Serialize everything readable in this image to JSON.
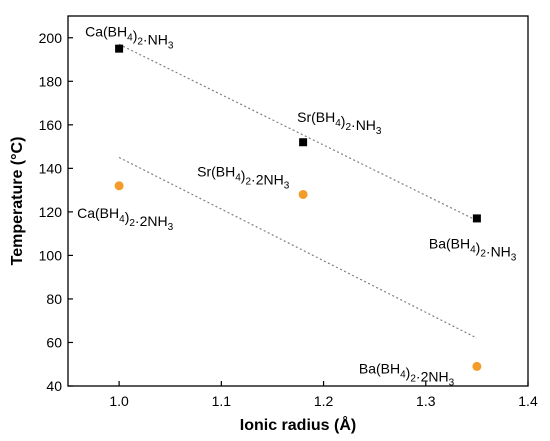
{
  "chart_data": {
    "type": "scatter",
    "xlabel": "Ionic radius (Å)",
    "ylabel": "Temperature (°C)",
    "xlim": [
      0.95,
      1.4
    ],
    "ylim": [
      40,
      210
    ],
    "xticks": [
      1.0,
      1.1,
      1.2,
      1.3,
      1.4
    ],
    "xtick_labels": [
      "1.0",
      "1.1",
      "1.2",
      "1.3",
      "1.4"
    ],
    "yticks": [
      40,
      60,
      80,
      100,
      120,
      140,
      160,
      180,
      200
    ],
    "ytick_labels": [
      "40",
      "60",
      "80",
      "100",
      "120",
      "140",
      "160",
      "180",
      "200"
    ],
    "grid": false,
    "series": [
      {
        "marker": "square",
        "color": "#000000",
        "points": [
          {
            "x": 1.0,
            "y": 195,
            "label": "Ca(BH4)2·NH3"
          },
          {
            "x": 1.18,
            "y": 152,
            "label": "Sr(BH4)2·NH3"
          },
          {
            "x": 1.35,
            "y": 117,
            "label": "Ba(BH4)2·NH3"
          }
        ]
      },
      {
        "marker": "circle",
        "color": "#f39c2a",
        "points": [
          {
            "x": 1.0,
            "y": 132,
            "label": "Ca(BH4)2·2NH3"
          },
          {
            "x": 1.18,
            "y": 128,
            "label": "Sr(BH4)2·2NH3"
          },
          {
            "x": 1.35,
            "y": 49,
            "label": "Ba(BH4)2·2NH3"
          }
        ]
      }
    ],
    "trend_lines": [
      {
        "color": "#7f7f7f",
        "style": "dotted",
        "x": [
          1.0,
          1.35
        ],
        "y": [
          197,
          116
        ]
      },
      {
        "color": "#7f7f7f",
        "style": "dotted",
        "x": [
          1.0,
          1.35
        ],
        "y": [
          145,
          62
        ]
      }
    ]
  }
}
